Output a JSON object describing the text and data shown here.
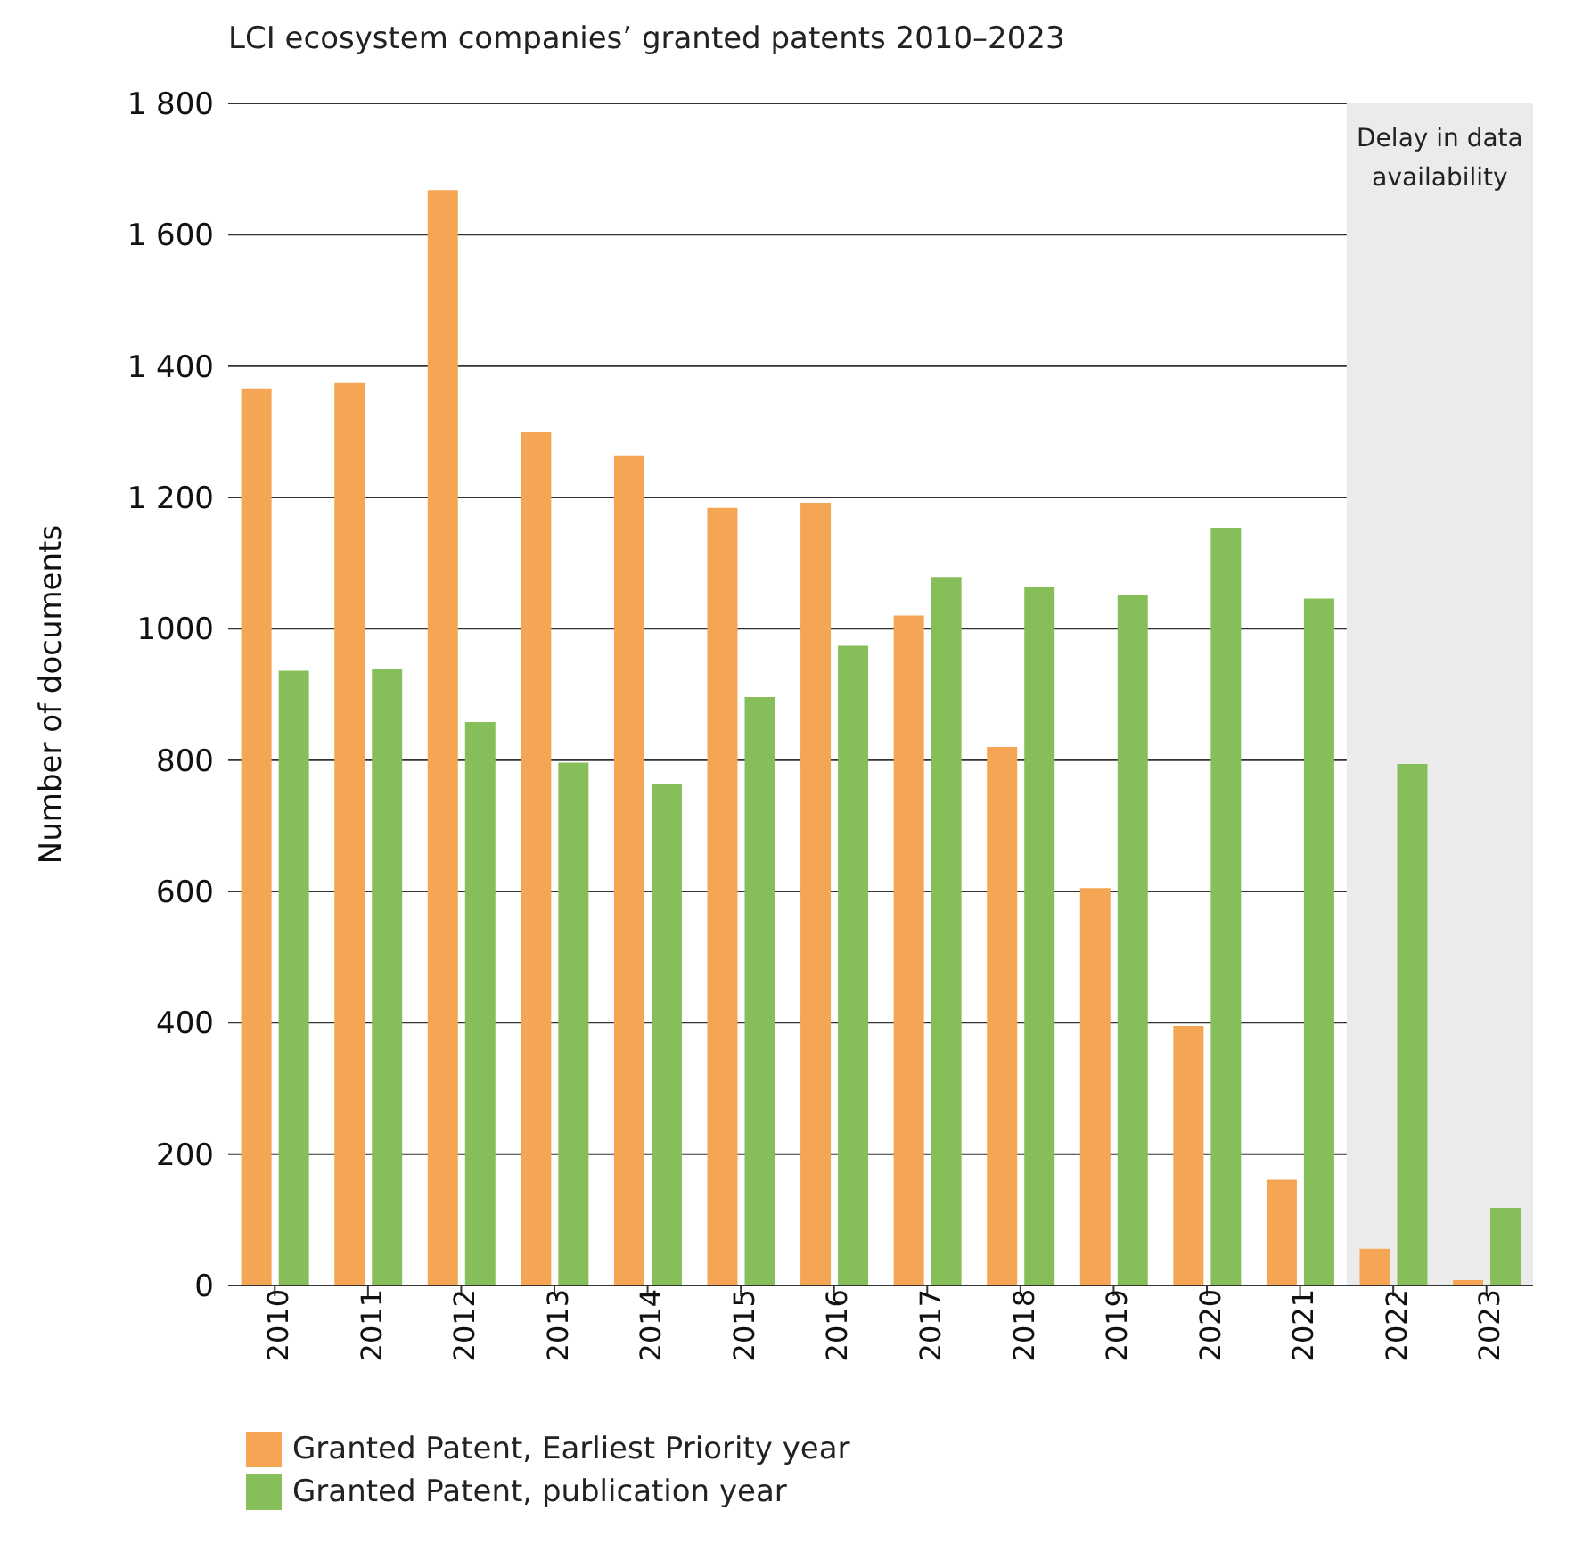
{
  "chart_data": {
    "type": "bar",
    "title": "LCI ecosystem companies’ granted patents 2010–2023",
    "ylabel": "Number of documents",
    "categories": [
      "2010",
      "2011",
      "2012",
      "2013",
      "2014",
      "2015",
      "2016",
      "2017",
      "2018",
      "2019",
      "2020",
      "2021",
      "2022",
      "2023"
    ],
    "series": [
      {
        "name": "Granted Patent, Earliest Priority year",
        "color": "#f5a654",
        "values": [
          1366,
          1374,
          1668,
          1299,
          1264,
          1184,
          1192,
          1020,
          820,
          605,
          395,
          161,
          56,
          8
        ]
      },
      {
        "name": "Granted Patent, publication year",
        "color": "#86bf5a",
        "values": [
          936,
          939,
          858,
          796,
          764,
          896,
          974,
          1079,
          1063,
          1052,
          1154,
          1046,
          794,
          118
        ]
      }
    ],
    "ylim": [
      0,
      1800
    ],
    "yticks": [
      0,
      200,
      400,
      600,
      800,
      1000,
      {
        "value": 1200,
        "label": "1 200"
      },
      {
        "value": 1400,
        "label": "1 400"
      },
      {
        "value": 1600,
        "label": "1 600"
      },
      {
        "value": 1800,
        "label": "1 800"
      }
    ],
    "bands": [
      {
        "axis": "x",
        "from": "2022",
        "to": "2023",
        "label": "Delay in data availability",
        "color": "#ebebeb"
      }
    ],
    "grid": "y",
    "legend": "bottom left"
  }
}
